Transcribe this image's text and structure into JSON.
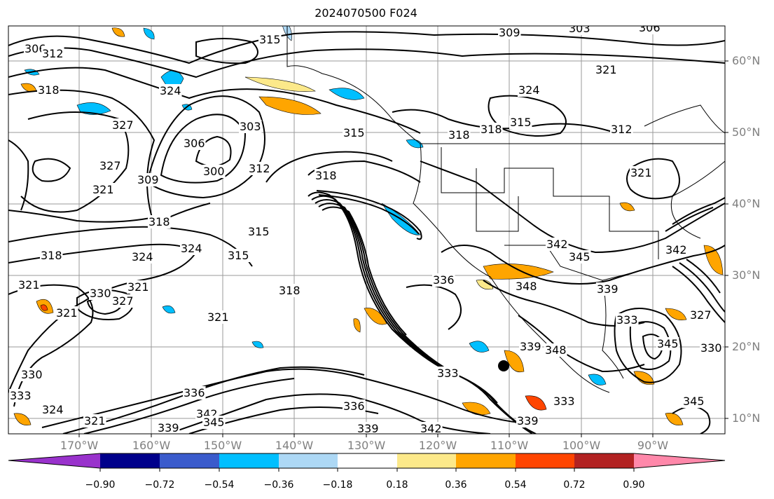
{
  "title": "2024070500 F024",
  "lat_labels": [
    "60°N",
    "50°N",
    "40°N",
    "30°N",
    "20°N",
    "10°N"
  ],
  "lon_labels": [
    "170°W",
    "160°W",
    "150°W",
    "140°W",
    "130°W",
    "120°W",
    "110°W",
    "100°W",
    "90°W"
  ],
  "colorbar": {
    "ticks": [
      "−0.90",
      "−0.72",
      "−0.54",
      "−0.36",
      "−0.18",
      "0.18",
      "0.36",
      "0.54",
      "0.72",
      "0.90"
    ],
    "colors": [
      "#9932cc",
      "#00008b",
      "#3a5bcc",
      "#00bfff",
      "#add8f5",
      "#ffffff",
      "#fce98a",
      "#ffa500",
      "#ff4500",
      "#b22222",
      "#ff88aa"
    ]
  },
  "contour_labels": [
    "306",
    "312",
    "309",
    "303",
    "306",
    "315",
    "318",
    "324",
    "327",
    "321",
    "309",
    "306",
    "303",
    "300",
    "312",
    "315",
    "318",
    "321",
    "318",
    "324",
    "327",
    "324",
    "315",
    "321",
    "318",
    "321",
    "330",
    "327",
    "321",
    "321",
    "330",
    "333",
    "324",
    "321",
    "318",
    "336",
    "342",
    "345",
    "339",
    "336",
    "333",
    "339",
    "342",
    "336",
    "348",
    "342",
    "345",
    "339",
    "333",
    "327",
    "330",
    "348",
    "339",
    "345",
    "342",
    "333",
    "339",
    "345",
    "315",
    "312",
    "318",
    "321",
    "318",
    "315",
    "324"
  ]
}
